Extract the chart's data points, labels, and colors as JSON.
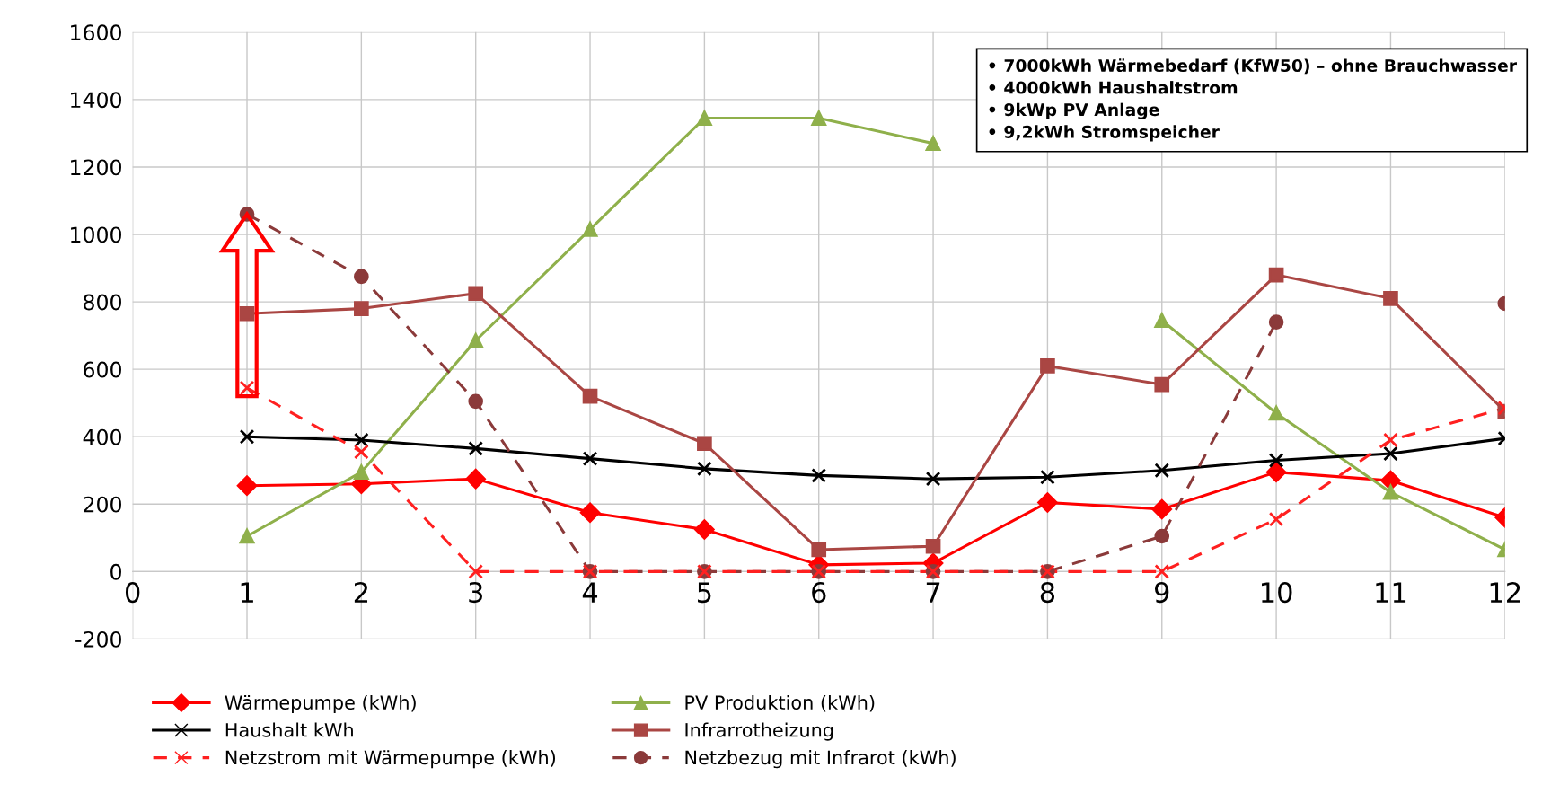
{
  "chart_data": {
    "type": "line",
    "x": [
      1,
      2,
      3,
      4,
      5,
      6,
      7,
      8,
      9,
      10,
      11,
      12
    ],
    "xlim": [
      0,
      12
    ],
    "xticks": [
      0,
      1,
      2,
      3,
      4,
      5,
      6,
      7,
      8,
      9,
      10,
      11,
      12
    ],
    "ylim": [
      -200,
      1600
    ],
    "yticks": [
      -200,
      0,
      200,
      400,
      600,
      800,
      1000,
      1200,
      1400,
      1600
    ],
    "grid": true,
    "legend": "bottom",
    "series": [
      {
        "name": "Wärmepumpe (kWh)",
        "color": "#ff0000",
        "marker": "diamond",
        "line_style": "solid",
        "values": [
          255,
          260,
          275,
          175,
          125,
          20,
          25,
          205,
          185,
          295,
          270,
          160
        ]
      },
      {
        "name": "PV Produktion (kWh)",
        "color": "#8fb04b",
        "marker": "triangle",
        "line_style": "solid",
        "values": [
          105,
          295,
          685,
          1015,
          1345,
          1345,
          1270,
          null,
          745,
          470,
          235,
          65
        ]
      },
      {
        "name": "Haushalt kWh",
        "color": "#000000",
        "marker": "cross",
        "line_style": "solid",
        "values": [
          400,
          390,
          365,
          335,
          305,
          285,
          275,
          280,
          300,
          330,
          350,
          395
        ]
      },
      {
        "name": "Infrarrotheizung",
        "color": "#aa4643",
        "marker": "square",
        "line_style": "solid",
        "values": [
          765,
          780,
          825,
          520,
          380,
          65,
          75,
          610,
          555,
          880,
          810,
          475
        ]
      },
      {
        "name": "Netzstrom mit Wärmepumpe (kWh)",
        "color": "#ff2020",
        "marker": "cross",
        "line_style": "dashed",
        "values": [
          545,
          355,
          0,
          0,
          0,
          0,
          0,
          0,
          0,
          155,
          390,
          485
        ]
      },
      {
        "name": "Netzbezug mit Infrarot (kWh)",
        "color": "#8b3a3a",
        "marker": "circle",
        "line_style": "dashed",
        "values": [
          1060,
          875,
          505,
          0,
          0,
          0,
          0,
          0,
          105,
          740,
          null,
          795
        ]
      }
    ],
    "annotations": [
      "• 7000kWh Wärmebedarf (KfW50) – ohne Brauchwasser",
      "• 4000kWh Haushaltstrom",
      "• 9kWp PV Anlage",
      "• 9,2kWh Stromspeicher"
    ]
  }
}
